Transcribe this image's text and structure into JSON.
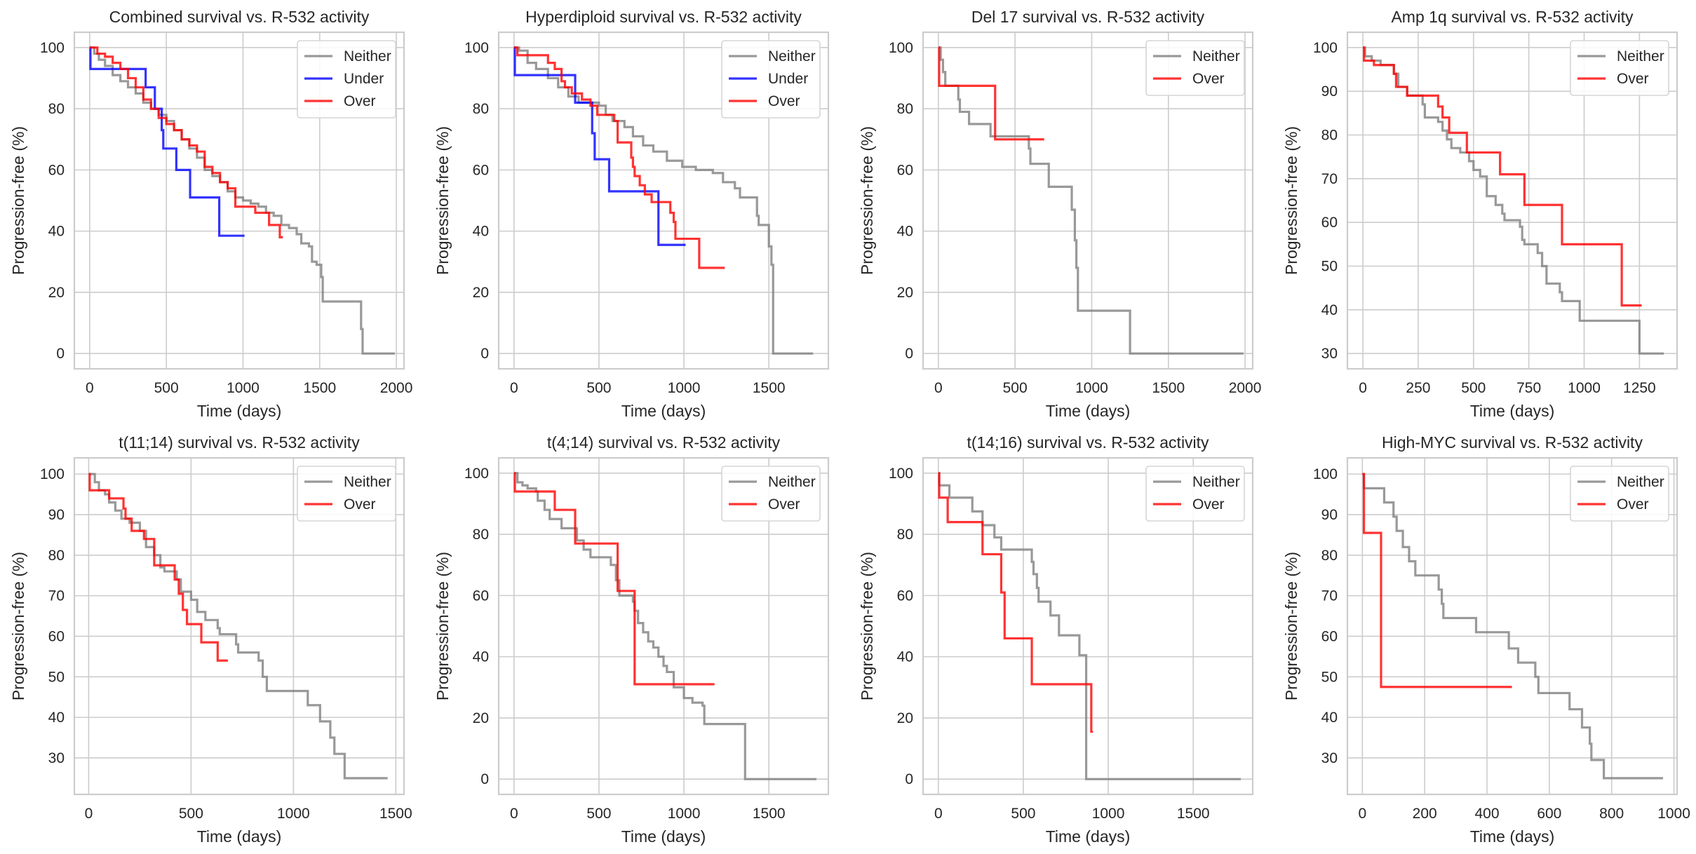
{
  "figure": {
    "layout": "2 rows x 4 columns"
  },
  "colors": {
    "Neither": "#808080",
    "Under": "#0000ff",
    "Over": "#ff0000"
  },
  "chart_data": [
    {
      "type": "line",
      "title": "Combined survival vs. R-532 activity",
      "xlabel": "Time (days)",
      "ylabel": "Progression-free (%)",
      "xlim": [
        -100,
        2050
      ],
      "ylim": [
        -5,
        105
      ],
      "xticks": [
        0,
        500,
        1000,
        1500,
        2000
      ],
      "yticks": [
        0,
        20,
        40,
        60,
        80,
        100
      ],
      "grid": true,
      "legend": "top-right",
      "series": [
        {
          "name": "Neither",
          "x": [
            0,
            30,
            60,
            100,
            150,
            200,
            250,
            300,
            350,
            400,
            450,
            500,
            550,
            600,
            650,
            700,
            750,
            800,
            850,
            900,
            950,
            1000,
            1050,
            1100,
            1150,
            1200,
            1250,
            1300,
            1350,
            1380,
            1430,
            1450,
            1480,
            1510,
            1520,
            1770,
            1780,
            1990
          ],
          "y": [
            100,
            98,
            96,
            94,
            91,
            89,
            87,
            85,
            82,
            80,
            78,
            76,
            73,
            70,
            67,
            64,
            60,
            58,
            56,
            53,
            51,
            50,
            49,
            48,
            46,
            45,
            42,
            41,
            39,
            36,
            35,
            30,
            29,
            25,
            17,
            8,
            0,
            0
          ]
        },
        {
          "name": "Under",
          "x": [
            0,
            5,
            365,
            425,
            470,
            480,
            565,
            655,
            845,
            1010
          ],
          "y": [
            100,
            93,
            87,
            80,
            73,
            67,
            60,
            51,
            38.5,
            38.5
          ]
        },
        {
          "name": "Over",
          "x": [
            0,
            50,
            100,
            150,
            200,
            250,
            300,
            350,
            400,
            450,
            500,
            550,
            600,
            650,
            700,
            750,
            800,
            850,
            900,
            950,
            1000,
            1080,
            1170,
            1240,
            1260
          ],
          "y": [
            100,
            98,
            97,
            95,
            93,
            90,
            87,
            83,
            80,
            77,
            75,
            73,
            70,
            68,
            66,
            61,
            59,
            56,
            54,
            48,
            48,
            46,
            42,
            38,
            38
          ]
        }
      ]
    },
    {
      "type": "line",
      "title": "Hyperdiploid survival vs. R-532 activity",
      "xlabel": "Time (days)",
      "ylabel": "Progression-free (%)",
      "xlim": [
        -90,
        1850
      ],
      "ylim": [
        -5,
        105
      ],
      "xticks": [
        0,
        500,
        1000,
        1500
      ],
      "yticks": [
        0,
        20,
        40,
        60,
        80,
        100
      ],
      "grid": true,
      "legend": "top-right",
      "series": [
        {
          "name": "Neither",
          "x": [
            0,
            30,
            80,
            130,
            200,
            260,
            320,
            380,
            450,
            500,
            540,
            580,
            650,
            700,
            760,
            820,
            900,
            990,
            1070,
            1170,
            1230,
            1300,
            1330,
            1430,
            1440,
            1500,
            1515,
            1525,
            1760
          ],
          "y": [
            100,
            99,
            95,
            93,
            90,
            87,
            84,
            82,
            82,
            81,
            78,
            76,
            74,
            71,
            68,
            66,
            63,
            61,
            60,
            59,
            56,
            54,
            51,
            45,
            42,
            35,
            29,
            0,
            0
          ]
        },
        {
          "name": "Under",
          "x": [
            0,
            5,
            360,
            460,
            475,
            560,
            850,
            1010
          ],
          "y": [
            100,
            91,
            82,
            72,
            63.5,
            53,
            35.5,
            35.5
          ]
        },
        {
          "name": "Over",
          "x": [
            0,
            20,
            200,
            240,
            280,
            300,
            340,
            400,
            450,
            490,
            590,
            610,
            690,
            700,
            710,
            740,
            770,
            810,
            920,
            940,
            950,
            1090,
            1240
          ],
          "y": [
            100,
            97.5,
            95,
            93,
            89,
            87,
            85,
            83,
            81,
            78,
            76,
            69,
            64,
            61,
            58,
            55,
            52,
            49.5,
            46,
            43,
            37.5,
            28,
            28
          ]
        }
      ]
    },
    {
      "type": "line",
      "title": "Del 17 survival vs. R-532 activity",
      "xlabel": "Time (days)",
      "ylabel": "Progression-free (%)",
      "xlim": [
        -100,
        2050
      ],
      "ylim": [
        -5,
        105
      ],
      "xticks": [
        0,
        500,
        1000,
        1500,
        2000
      ],
      "yticks": [
        0,
        20,
        40,
        60,
        80,
        100
      ],
      "grid": true,
      "legend": "top-right",
      "series": [
        {
          "name": "Neither",
          "x": [
            0,
            15,
            30,
            45,
            130,
            140,
            200,
            340,
            590,
            600,
            720,
            870,
            890,
            900,
            910,
            1250,
            1990
          ],
          "y": [
            100,
            96,
            92,
            87.5,
            83,
            79,
            75,
            71,
            67,
            62,
            54.5,
            47,
            37,
            28,
            14,
            0,
            0
          ]
        },
        {
          "name": "Over",
          "x": [
            0,
            5,
            370,
            690
          ],
          "y": [
            100,
            87.5,
            70,
            70
          ]
        }
      ]
    },
    {
      "type": "line",
      "title": "Amp 1q survival vs. R-532 activity",
      "xlabel": "Time (days)",
      "ylabel": "Progression-free (%)",
      "xlim": [
        -70,
        1420
      ],
      "ylim": [
        26.5,
        103.5
      ],
      "xticks": [
        0,
        250,
        500,
        750,
        1000,
        1250
      ],
      "yticks": [
        30,
        40,
        50,
        60,
        70,
        80,
        90,
        100
      ],
      "grid": true,
      "legend": "top-right",
      "series": [
        {
          "name": "Neither",
          "x": [
            0,
            10,
            40,
            80,
            140,
            160,
            200,
            250,
            270,
            280,
            340,
            360,
            380,
            400,
            440,
            480,
            500,
            530,
            560,
            600,
            630,
            640,
            710,
            720,
            730,
            790,
            810,
            830,
            890,
            900,
            970,
            980,
            1240,
            1250,
            1360
          ],
          "y": [
            100,
            98,
            97,
            96,
            94,
            91,
            89,
            89,
            87,
            84,
            83,
            81,
            79,
            77,
            76,
            74,
            72,
            70.5,
            66,
            64,
            62,
            60.5,
            59,
            56,
            55,
            53,
            50,
            46,
            44,
            42,
            42,
            37.5,
            37.5,
            30,
            30
          ]
        },
        {
          "name": "Over",
          "x": [
            0,
            5,
            50,
            140,
            150,
            200,
            340,
            360,
            390,
            470,
            620,
            730,
            900,
            1170,
            1260
          ],
          "y": [
            100,
            97,
            96,
            94,
            91,
            89,
            86.5,
            84,
            80.5,
            76,
            71,
            64,
            55,
            41,
            41
          ]
        }
      ]
    },
    {
      "type": "line",
      "title": "t(11;14) survival vs. R-532 activity",
      "xlabel": "Time (days)",
      "ylabel": "Progression-free (%)",
      "xlim": [
        -70,
        1540
      ],
      "ylim": [
        21,
        104
      ],
      "xticks": [
        0,
        500,
        1000,
        1500
      ],
      "yticks": [
        30,
        40,
        50,
        60,
        70,
        80,
        90,
        100
      ],
      "grid": true,
      "legend": "top-right",
      "series": [
        {
          "name": "Neither",
          "x": [
            0,
            30,
            50,
            80,
            100,
            130,
            160,
            200,
            250,
            280,
            320,
            350,
            370,
            430,
            450,
            500,
            530,
            570,
            630,
            640,
            720,
            730,
            830,
            850,
            870,
            1070,
            1130,
            1180,
            1200,
            1250,
            1460
          ],
          "y": [
            100,
            98,
            96,
            95,
            93,
            91,
            89,
            88,
            86,
            82,
            80,
            77,
            76,
            74,
            71,
            69,
            66,
            64,
            62,
            60.5,
            58,
            56,
            54,
            50,
            46.5,
            43,
            39,
            35,
            31,
            25,
            25
          ]
        },
        {
          "name": "Over",
          "x": [
            0,
            5,
            100,
            170,
            180,
            210,
            270,
            320,
            420,
            440,
            460,
            480,
            550,
            630,
            680
          ],
          "y": [
            100,
            96,
            94,
            91.5,
            89,
            86,
            84,
            77.5,
            74,
            70.5,
            66.5,
            63,
            58.5,
            54,
            54
          ]
        }
      ]
    },
    {
      "type": "line",
      "title": "t(4;14) survival vs. R-532 activity",
      "xlabel": "Time (days)",
      "ylabel": "Progression-free (%)",
      "xlim": [
        -90,
        1850
      ],
      "ylim": [
        -5,
        105
      ],
      "xticks": [
        0,
        500,
        1000,
        1500
      ],
      "yticks": [
        0,
        20,
        40,
        60,
        80,
        100
      ],
      "grid": true,
      "legend": "top-right",
      "series": [
        {
          "name": "Neither",
          "x": [
            0,
            20,
            50,
            80,
            130,
            140,
            180,
            210,
            280,
            370,
            410,
            450,
            570,
            600,
            620,
            700,
            710,
            730,
            760,
            790,
            820,
            850,
            880,
            900,
            940,
            1000,
            1050,
            1110,
            1120,
            1350,
            1360,
            1780
          ],
          "y": [
            100,
            97,
            96,
            95,
            94,
            91,
            88,
            85,
            82,
            78,
            75,
            72.5,
            70,
            65,
            60,
            58,
            55,
            51,
            48,
            45,
            43,
            40,
            37,
            35,
            30,
            26.5,
            25,
            24,
            18,
            18,
            0,
            0
          ]
        },
        {
          "name": "Over",
          "x": [
            0,
            5,
            240,
            360,
            610,
            710,
            1180
          ],
          "y": [
            100,
            94,
            88,
            77,
            61.5,
            31,
            31
          ]
        }
      ]
    },
    {
      "type": "line",
      "title": "t(14;16) survival vs. R-532 activity",
      "xlabel": "Time (days)",
      "ylabel": "Progression-free (%)",
      "xlim": [
        -90,
        1850
      ],
      "ylim": [
        -5,
        105
      ],
      "xticks": [
        0,
        500,
        1000,
        1500
      ],
      "yticks": [
        0,
        20,
        40,
        60,
        80,
        100
      ],
      "grid": true,
      "legend": "top-right",
      "series": [
        {
          "name": "Neither",
          "x": [
            0,
            5,
            65,
            200,
            260,
            330,
            370,
            550,
            560,
            580,
            590,
            660,
            710,
            830,
            860,
            870,
            1780
          ],
          "y": [
            100,
            96,
            92,
            87.5,
            83,
            79,
            75,
            71,
            67,
            62.5,
            58,
            53.5,
            47,
            40.5,
            40.5,
            0,
            0
          ]
        },
        {
          "name": "Over",
          "x": [
            0,
            5,
            55,
            260,
            370,
            390,
            550,
            900,
            910
          ],
          "y": [
            100,
            92,
            84,
            73.5,
            61,
            46,
            31,
            15.5,
            15.5
          ]
        }
      ]
    },
    {
      "type": "line",
      "title": "High-MYC survival vs. R-532 activity",
      "xlabel": "Time (days)",
      "ylabel": "Progression-free (%)",
      "xlim": [
        -48,
        1010
      ],
      "ylim": [
        21,
        104
      ],
      "xticks": [
        0,
        200,
        400,
        600,
        800,
        1000
      ],
      "yticks": [
        30,
        40,
        50,
        60,
        70,
        80,
        90,
        100
      ],
      "grid": true,
      "legend": "top-right",
      "series": [
        {
          "name": "Neither",
          "x": [
            0,
            5,
            70,
            100,
            110,
            130,
            150,
            170,
            245,
            255,
            260,
            365,
            470,
            500,
            555,
            565,
            665,
            705,
            730,
            735,
            775,
            965
          ],
          "y": [
            100,
            96.5,
            93,
            89.5,
            86,
            82,
            78.5,
            75,
            71.5,
            68,
            64.5,
            61,
            57,
            53.5,
            50,
            46,
            42,
            37.5,
            33.5,
            29.5,
            25,
            25
          ]
        },
        {
          "name": "Over",
          "x": [
            0,
            5,
            60,
            480
          ],
          "y": [
            100,
            85.5,
            47.5,
            47.5
          ]
        }
      ]
    }
  ]
}
